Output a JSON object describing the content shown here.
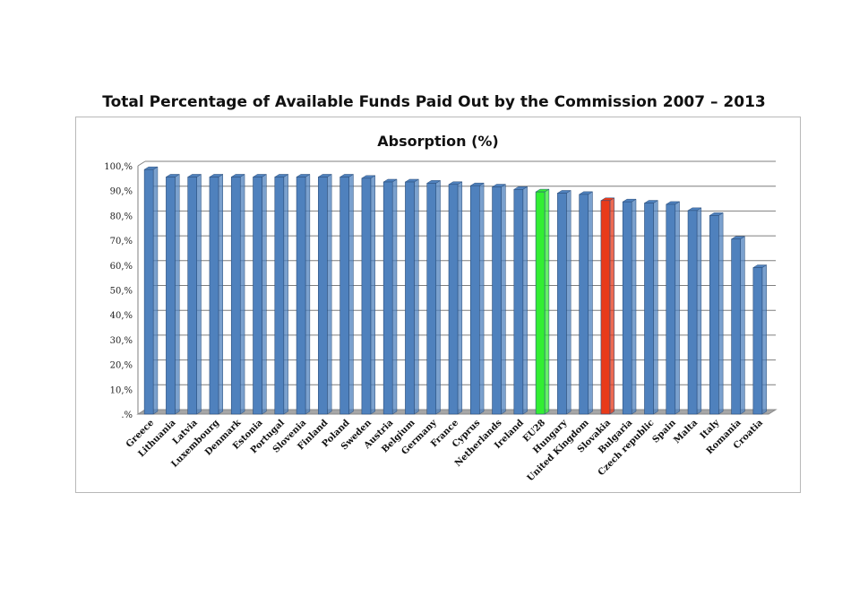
{
  "page_title": "Total Percentage of Available Funds Paid Out by the Commission 2007 – 2013",
  "colors": {
    "bar": "#4f81bd",
    "highlight_eu": "#33ee33",
    "highlight_sk": "#e83a1a"
  },
  "chart_data": {
    "type": "bar",
    "title": "Absorption (%)",
    "xlabel": "",
    "ylabel": "",
    "ylim": [
      0,
      100
    ],
    "grid": true,
    "y_ticks": [
      ".%",
      "10,%",
      "20,%",
      "30,%",
      "40,%",
      "50,%",
      "60,%",
      "70,%",
      "80,%",
      "90,%",
      "100,%"
    ],
    "categories": [
      "Greece",
      "Lithuania",
      "Latvia",
      "Luxembourg",
      "Denmark",
      "Estonia",
      "Portugal",
      "Slovenia",
      "Finland",
      "Poland",
      "Sweden",
      "Austria",
      "Belgium",
      "Germany",
      "France",
      "Cyprus",
      "Netherlands",
      "Ireland",
      "EU28",
      "Hungary",
      "United Kingdom",
      "Slovakia",
      "Bulgaria",
      "Czech republic",
      "Spain",
      "Malta",
      "Italy",
      "Romania",
      "Croatia"
    ],
    "values": [
      98.5,
      95.5,
      95.5,
      95.5,
      95.5,
      95.5,
      95.5,
      95.5,
      95.5,
      95.5,
      95.0,
      93.5,
      93.5,
      93.0,
      92.5,
      92.0,
      91.5,
      90.5,
      89.5,
      89.0,
      88.5,
      86.0,
      85.5,
      85.0,
      84.5,
      82.0,
      80.0,
      70.5,
      59.0
    ],
    "highlights": {
      "EU28": "#33ee33",
      "Slovakia": "#e83a1a"
    }
  }
}
